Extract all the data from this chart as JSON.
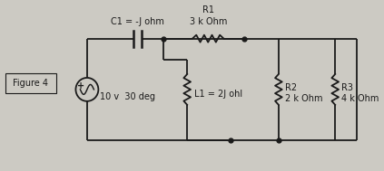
{
  "bg_color": "#cccac3",
  "fig_label": "Figure 4",
  "source_label": "10 v  30 deg",
  "C1_label": "C1 = -J ohm",
  "R1_label": "R1\n3 k Ohm",
  "L1_label": "L1 = 2J ohl",
  "R2_label": "R2\n2 k Ohm",
  "R3_label": "R3\n4 k Ohm",
  "line_color": "#1a1a1a",
  "text_color": "#1a1a1a",
  "font_size": 7.0
}
